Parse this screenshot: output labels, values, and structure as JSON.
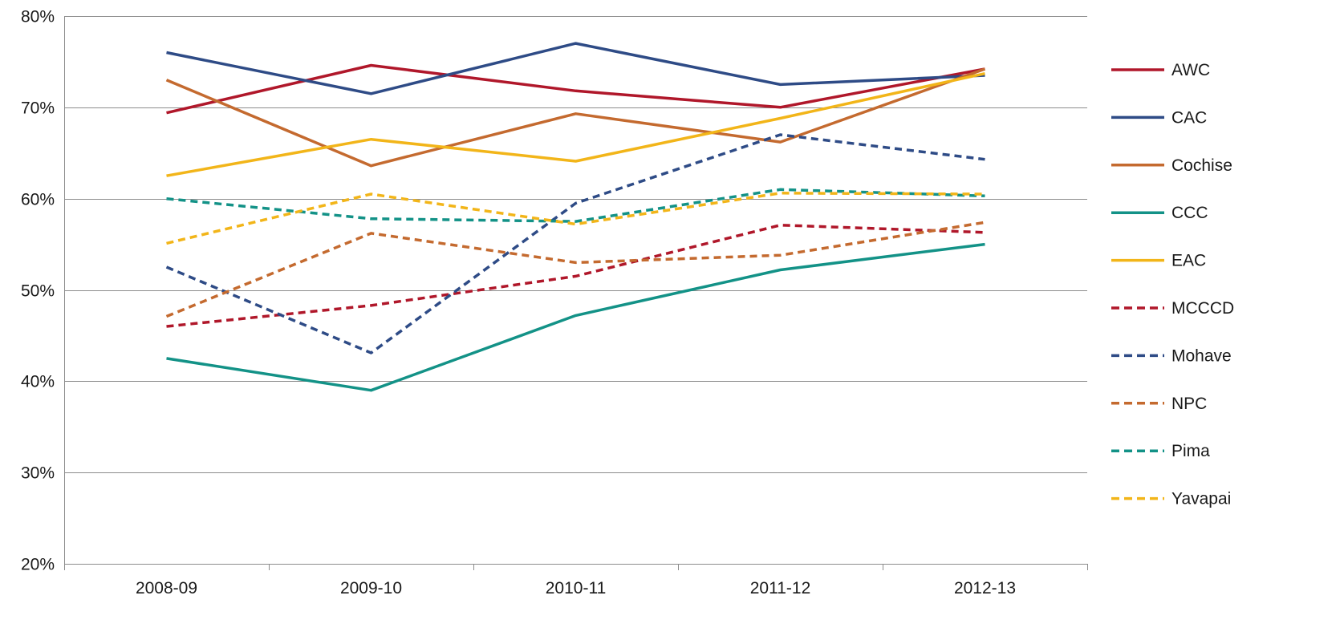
{
  "chart_data": {
    "type": "line",
    "title": "",
    "xlabel": "",
    "ylabel": "",
    "categories": [
      "2008-09",
      "2009-10",
      "2010-11",
      "2011-12",
      "2012-13"
    ],
    "ylim": [
      0.2,
      0.8
    ],
    "yticks": [
      0.2,
      0.3,
      0.4,
      0.5,
      0.6,
      0.7,
      0.8
    ],
    "ytick_labels": [
      "20%",
      "30%",
      "40%",
      "50%",
      "60%",
      "70%",
      "80%"
    ],
    "y_format": "percent",
    "grid": "horizontal",
    "legend_position": "right",
    "series": [
      {
        "name": "AWC",
        "color": "#b0172a",
        "style": "solid",
        "values": [
          0.694,
          0.746,
          0.718,
          0.7,
          0.742
        ]
      },
      {
        "name": "CAC",
        "color": "#2e4b86",
        "style": "solid",
        "values": [
          0.76,
          0.715,
          0.77,
          0.725,
          0.735
        ]
      },
      {
        "name": "Cochise",
        "color": "#c46a2f",
        "style": "solid",
        "values": [
          0.73,
          0.636,
          0.693,
          0.662,
          0.742
        ]
      },
      {
        "name": "CCC",
        "color": "#139287",
        "style": "solid",
        "values": [
          0.425,
          0.39,
          0.472,
          0.522,
          0.55
        ]
      },
      {
        "name": "EAC",
        "color": "#f2b519",
        "style": "solid",
        "values": [
          0.625,
          0.665,
          0.641,
          0.688,
          0.737
        ]
      },
      {
        "name": "MCCCD",
        "color": "#b0172a",
        "style": "dashed",
        "values": [
          0.46,
          0.483,
          0.515,
          0.571,
          0.563
        ]
      },
      {
        "name": "Mohave",
        "color": "#2e4b86",
        "style": "dashed",
        "values": [
          0.525,
          0.431,
          0.595,
          0.67,
          0.643
        ]
      },
      {
        "name": "NPC",
        "color": "#c46a2f",
        "style": "dashed",
        "values": [
          0.471,
          0.562,
          0.53,
          0.538,
          0.574
        ]
      },
      {
        "name": "Pima",
        "color": "#139287",
        "style": "dashed",
        "values": [
          0.6,
          0.578,
          0.575,
          0.61,
          0.603
        ]
      },
      {
        "name": "Yavapai",
        "color": "#f2b519",
        "style": "dashed",
        "values": [
          0.551,
          0.605,
          0.572,
          0.606,
          0.605
        ]
      }
    ]
  }
}
